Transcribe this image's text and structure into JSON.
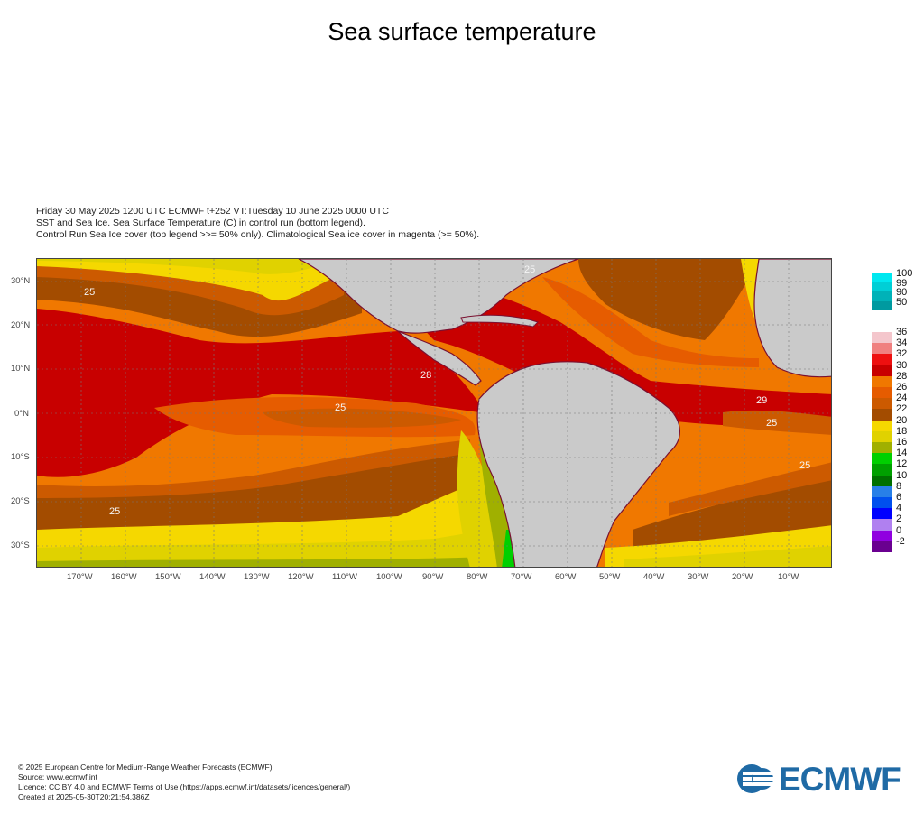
{
  "title": "Sea surface temperature",
  "subtitle_lines": [
    "Friday 30 May 2025 1200 UTC  ECMWF  t+252  VT:Tuesday 10 June 2025 0000 UTC",
    "SST and Sea Ice. Sea Surface Temperature (C) in control run (bottom legend).",
    "Control Run Sea Ice cover (top legend >>= 50% only). Climatological Sea ice cover in magenta (>= 50%)."
  ],
  "map": {
    "region": "Tropical Pacific and Atlantic, 35S to 35N, 180W to 0",
    "lat_labels": [
      "30°N",
      "20°N",
      "10°N",
      "0°N",
      "10°S",
      "20°S",
      "30°S"
    ],
    "lon_labels": [
      "170°W",
      "160°W",
      "150°W",
      "140°W",
      "130°W",
      "120°W",
      "110°W",
      "100°W",
      "90°W",
      "80°W",
      "70°W",
      "60°W",
      "50°W",
      "40°W",
      "30°W",
      "20°W",
      "10°W"
    ],
    "contour_labels": [
      "25",
      "25",
      "25",
      "25",
      "25",
      "25",
      "28",
      "29"
    ],
    "colors": {
      "land": "#cacaca",
      "coast": "#7a1030",
      "grid": "#777777"
    }
  },
  "ice_legend": {
    "labels": [
      "100",
      "99",
      "90",
      "50"
    ],
    "colors": [
      "#00e8f0",
      "#00cfd6",
      "#00b2b8",
      "#009aa0"
    ]
  },
  "sst_legend": {
    "labels": [
      "36",
      "34",
      "32",
      "30",
      "28",
      "26",
      "24",
      "22",
      "20",
      "18",
      "16",
      "14",
      "12",
      "10",
      "8",
      "6",
      "4",
      "2",
      "0",
      "-2"
    ],
    "colors": [
      "#f4c6cc",
      "#f08080",
      "#ee1010",
      "#c80000",
      "#f07800",
      "#e65c00",
      "#cc5a00",
      "#a34c00",
      "#f5d800",
      "#e0d200",
      "#a0b000",
      "#00d000",
      "#00a000",
      "#007000",
      "#2880e8",
      "#0050ee",
      "#0000ff",
      "#b080f0",
      "#9000e0",
      "#6a0090"
    ]
  },
  "footer": [
    "© 2025 European Centre for Medium-Range Weather Forecasts (ECMWF)",
    "Source: www.ecmwf.int",
    "Licence: CC BY 4.0 and ECMWF Terms of Use (https://apps.ecmwf.int/datasets/licences/general/)",
    "Created at 2025-05-30T20:21:54.386Z"
  ],
  "logo_text": "ECMWF"
}
